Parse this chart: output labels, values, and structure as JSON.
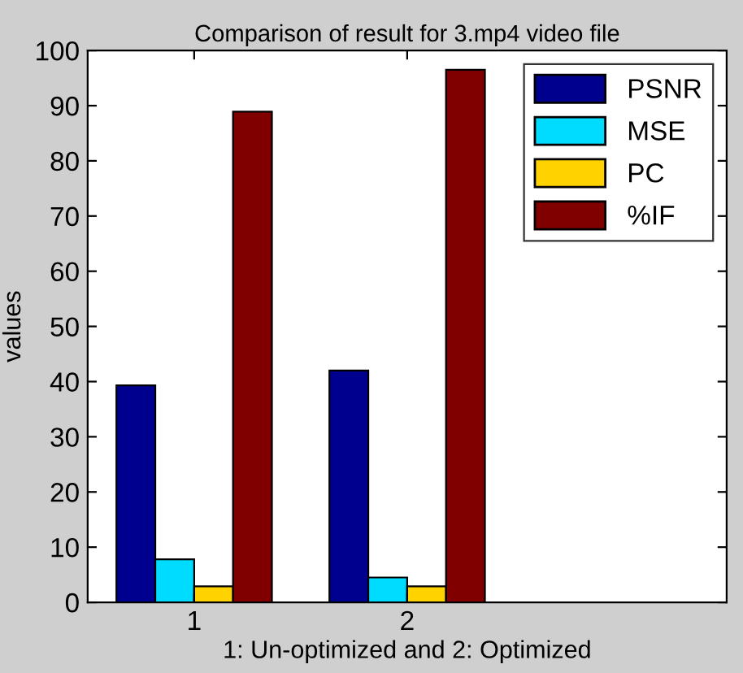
{
  "chart_data": {
    "type": "bar",
    "title": "Comparison of result for 3.mp4 video file",
    "xlabel": "1: Un-optimized and 2: Optimized",
    "ylabel": "values",
    "x": [
      1,
      2
    ],
    "xlim": [
      0.5,
      3.5
    ],
    "xticks": [
      1,
      2
    ],
    "ylim": [
      0,
      100
    ],
    "yticks": [
      0,
      10,
      20,
      30,
      40,
      50,
      60,
      70,
      80,
      90,
      100
    ],
    "series": [
      {
        "name": "PSNR",
        "color": "#00008f",
        "values": [
          39.3,
          42.0
        ]
      },
      {
        "name": "MSE",
        "color": "#00dcff",
        "values": [
          7.8,
          4.5
        ]
      },
      {
        "name": "PC",
        "color": "#ffd200",
        "values": [
          2.9,
          2.9
        ]
      },
      {
        "name": "%IF",
        "color": "#800000",
        "values": [
          88.9,
          96.5
        ]
      }
    ],
    "legend": "top right",
    "grid": false
  }
}
